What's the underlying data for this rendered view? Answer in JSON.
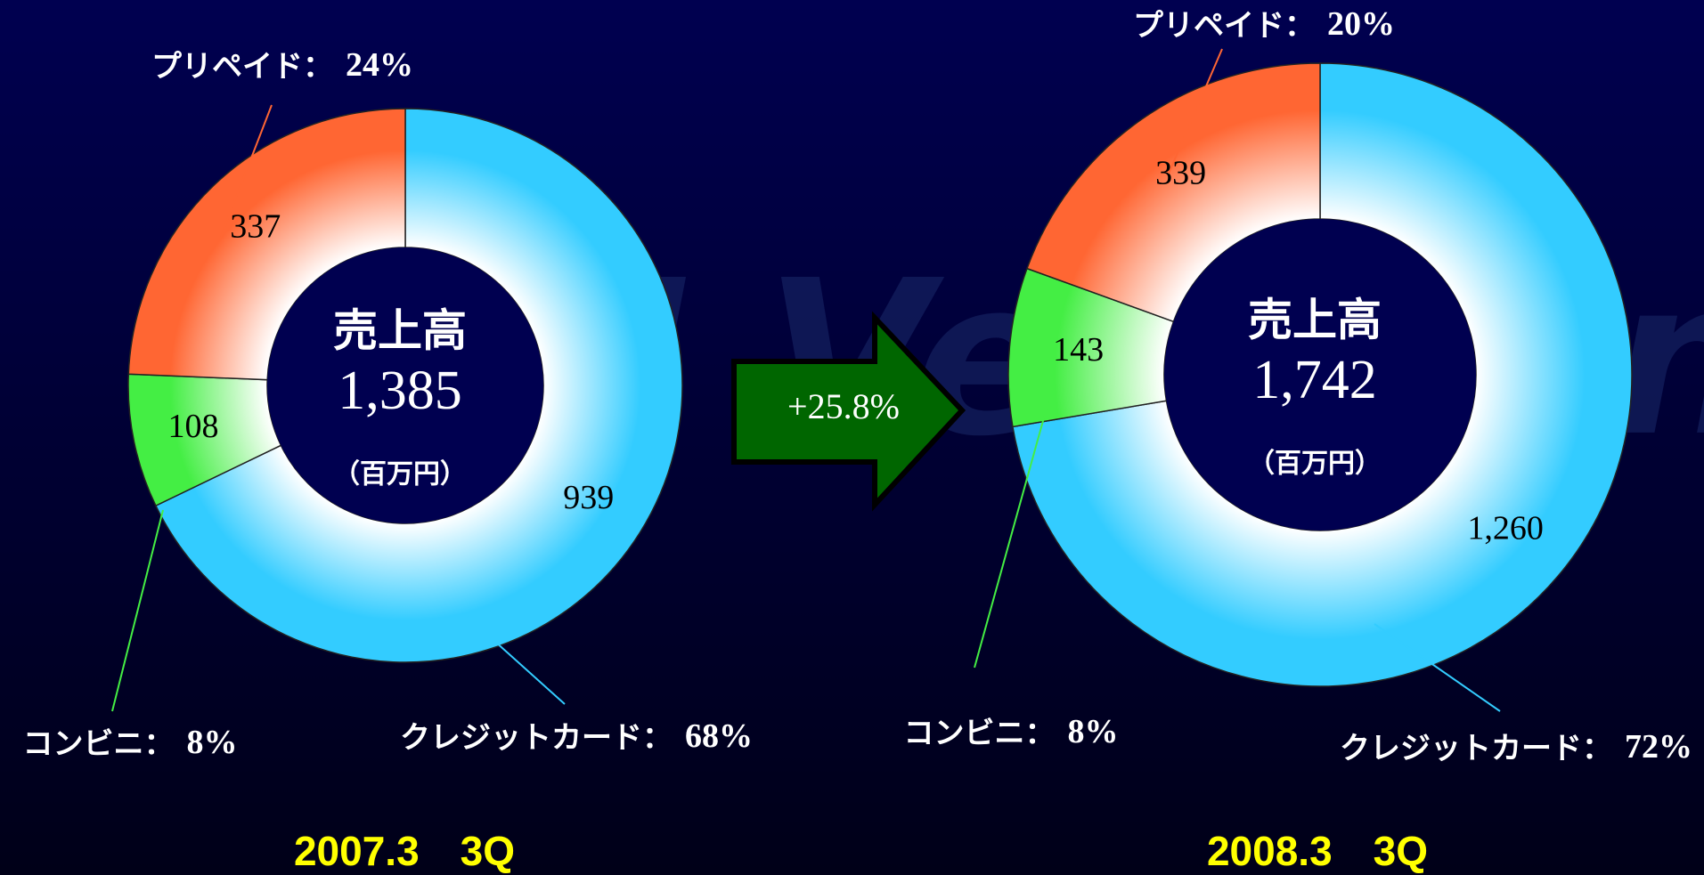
{
  "watermark": "SBI VeriTrans",
  "growth_label": "+25.8%",
  "chart_data": [
    {
      "type": "donut",
      "period": "2007.3　3Q",
      "center_title": "売上高",
      "total_label": "1,385",
      "unit": "（百万円）",
      "categories": [
        "クレジットカード：",
        "コンビニ：",
        "プリペイド："
      ],
      "values": [
        939,
        108,
        337
      ],
      "percents": [
        68,
        8,
        24
      ],
      "percent_labels": [
        "68%",
        "8%",
        "24%"
      ],
      "colors": [
        "#33ccff",
        "#44ee44",
        "#ff6633"
      ]
    },
    {
      "type": "donut",
      "period": "2008.3　3Q",
      "center_title": "売上高",
      "total_label": "1,742",
      "unit": "（百万円）",
      "categories": [
        "クレジットカード：",
        "コンビニ：",
        "プリペイド："
      ],
      "values": [
        1260,
        143,
        339
      ],
      "value_labels": [
        "1,260",
        "143",
        "339"
      ],
      "percents": [
        72,
        8,
        20
      ],
      "percent_labels": [
        "72%",
        "8%",
        "20%"
      ],
      "colors": [
        "#33ccff",
        "#44ee44",
        "#ff6633"
      ]
    }
  ]
}
